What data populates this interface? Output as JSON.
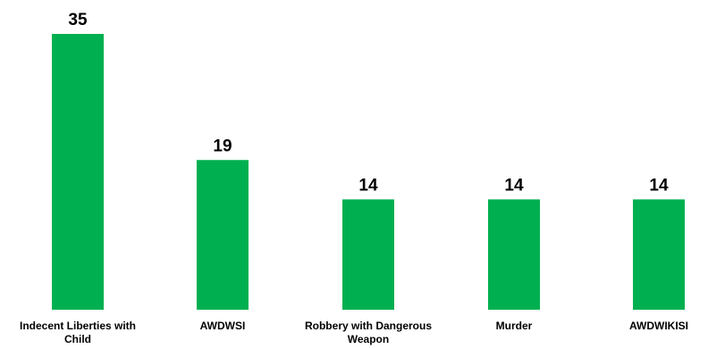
{
  "chart_data": {
    "type": "bar",
    "title": "",
    "xlabel": "",
    "ylabel": "",
    "categories": [
      "Indecent Liberties with Child",
      "AWDWSI",
      "Robbery with Dangerous Weapon",
      "Murder",
      "AWDWIKISI"
    ],
    "category_label_lines": [
      [
        "Indecent Liberties with",
        "Child"
      ],
      [
        "AWDWSI"
      ],
      [
        "Robbery with Dangerous",
        "Weapon"
      ],
      [
        "Murder"
      ],
      [
        "AWDWIKISI"
      ]
    ],
    "values": [
      35,
      19,
      14,
      14,
      14
    ],
    "ylim": [
      0,
      35
    ],
    "grid": false,
    "legend": "none",
    "data_labels": true,
    "bar_color": "#00B050"
  }
}
